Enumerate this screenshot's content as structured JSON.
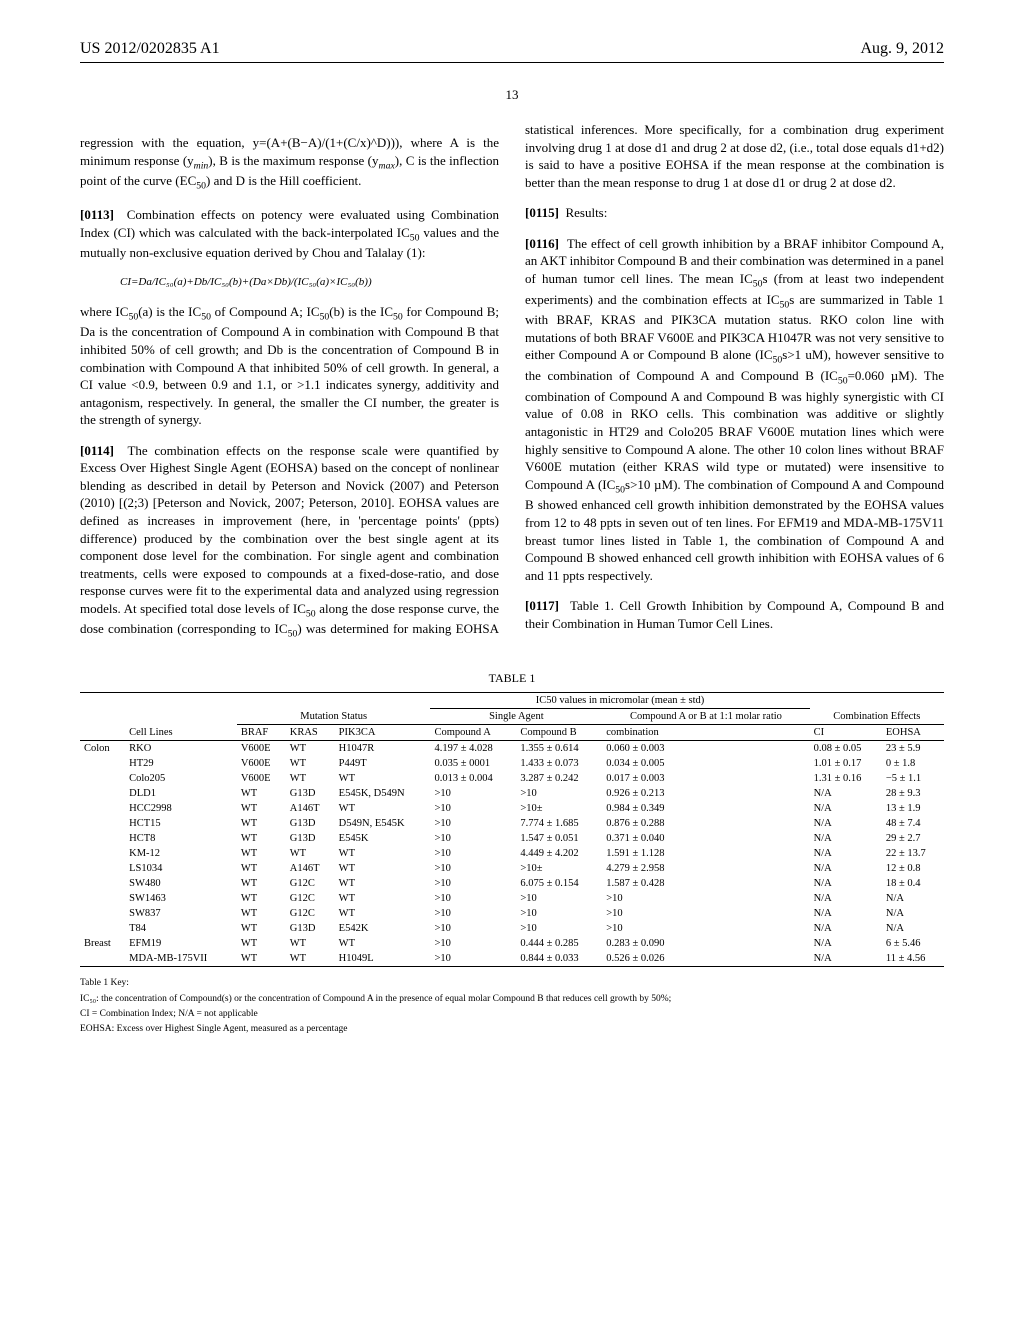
{
  "header": {
    "pub_number": "US 2012/0202835 A1",
    "pub_date": "Aug. 9, 2012"
  },
  "page_number": "13",
  "body": {
    "lead_in": "regression with the equation, y=(A+(B−A)/(1+(C/x)^D))), where A is the minimum response (y",
    "lead_in_min": "min",
    "lead_in_mid1": "), B is the maximum response (y",
    "lead_in_max": "max",
    "lead_in_mid2": "), C is the inflection point of the curve (EC",
    "lead_in_50": "50",
    "lead_in_end": ") and D is the Hill coefficient.",
    "p0113_num": "[0113]",
    "p0113": "Combination effects on potency were evaluated using Combination Index (CI) which was calculated with the back-interpolated IC",
    "p0113_50": "50",
    "p0113_b": " values and the mutually non-exclusive equation derived by Chou and Talalay (1):",
    "equation": "CI=Da/IC₅₀(a)+Db/IC₅₀(b)+(Da×Db)/(IC₅₀(a)×IC₅₀(b))",
    "p_after_eq_a": "where IC",
    "p_after_eq_b": "(a) is the IC",
    "p_after_eq_c": " of Compound A; IC",
    "p_after_eq_d": "(b) is the IC",
    "p_after_eq_e": " for Compound B; Da is the concentration of Compound A in combination with Compound B that inhibited 50% of cell growth; and Db is the concentration of Compound B in combination with Compound A that inhibited 50% of cell growth. In general, a CI value <0.9, between 0.9 and 1.1, or >1.1 indicates synergy, additivity and antagonism, respectively. In general, the smaller the CI number, the greater is the strength of synergy.",
    "p0114_num": "[0114]",
    "p0114": "The combination effects on the response scale were quantified by Excess Over Highest Single Agent (EOHSA) based on the concept of nonlinear blending as described in detail by Peterson and Novick (2007) and Peterson (2010) [(2;3) [Peterson and Novick, 2007; Peterson, 2010]. EOHSA values are defined as increases in improvement (here, in 'percentage points' (ppts) difference) produced by the combination over the best single agent at its component dose level for the combination. For single agent and combination treatments, cells were exposed to compounds at a fixed-dose-ratio, and dose response curves were fit to the experimental data and analyzed using regression models. At specified total dose levels of IC",
    "p0114_b": " along the dose response curve, the dose combination (corresponding to IC",
    "p0114_c": ") was determined for making EOHSA statistical inferences. More specifically, for a combination drug experiment involving drug 1 at dose d1 and drug 2 at dose d2, (i.e., total dose equals d1+d2) is said to have a positive EOHSA if the mean response at the combination is better than the mean response to drug 1 at dose d1 or drug 2 at dose d2.",
    "p0115_num": "[0115]",
    "p0115": "Results:",
    "p0116_num": "[0116]",
    "p0116": "The effect of cell growth inhibition by a BRAF inhibitor Compound A, an AKT inhibitor Compound B and their combination was determined in a panel of human tumor cell lines. The mean IC",
    "p0116_b": "s (from at least two independent experiments) and the combination effects at IC",
    "p0116_c": "s are summarized in Table 1 with BRAF, KRAS and PIK3CA mutation status. RKO colon line with mutations of both BRAF V600E and PIK3CA H1047R was not very sensitive to either Compound A or Compound B alone (IC",
    "p0116_d": "s>1 uM), however sensitive to the combination of Compound A and Compound B (IC",
    "p0116_e": "=0.060 µM). The combination of Compound A and Compound B was highly synergistic with CI value of 0.08 in RKO cells. This combination was additive or slightly antagonistic in HT29 and Colo205 BRAF V600E mutation lines which were highly sensitive to Compound A alone. The other 10 colon lines without BRAF V600E mutation (either KRAS wild type or mutated) were insensitive to Compound A (IC",
    "p0116_f": "s>10 µM). The combination of Compound A and Compound B showed enhanced cell growth inhibition demonstrated by the EOHSA values from 12 to 48 ppts in seven out of ten lines. For EFM19 and MDA-MB-175V11 breast tumor lines listed in Table 1, the combination of Compound A and Compound B showed enhanced cell growth inhibition with EOHSA values of 6 and 11 ppts respectively.",
    "p0117_num": "[0117]",
    "p0117": "Table 1. Cell Growth Inhibition by Compound A, Compound B and their Combination in Human Tumor Cell Lines."
  },
  "table": {
    "title": "TABLE 1",
    "super_head_ic50": "IC50 values in micromolar (mean ± std)",
    "group_heads": {
      "mutation": "Mutation Status",
      "single": "Single Agent",
      "combo": "Compound A or B at 1:1 molar ratio",
      "effects": "Combination Effects"
    },
    "columns": [
      "",
      "Cell Lines",
      "BRAF",
      "KRAS",
      "PIK3CA",
      "Compound A",
      "Compound B",
      "combination",
      "CI",
      "EOHSA"
    ],
    "rows": [
      [
        "Colon",
        "RKO",
        "V600E",
        "WT",
        "H1047R",
        "4.197 ± 4.028",
        "1.355 ± 0.614",
        "0.060 ± 0.003",
        "0.08 ± 0.05",
        "23 ± 5.9"
      ],
      [
        "",
        "HT29",
        "V600E",
        "WT",
        "P449T",
        "0.035 ± 0001",
        "1.433 ± 0.073",
        "0.034 ± 0.005",
        "1.01 ± 0.17",
        "0 ± 1.8"
      ],
      [
        "",
        "Colo205",
        "V600E",
        "WT",
        "WT",
        "0.013 ± 0.004",
        "3.287 ± 0.242",
        "0.017 ± 0.003",
        "1.31 ± 0.16",
        "−5 ± 1.1"
      ],
      [
        "",
        "DLD1",
        "WT",
        "G13D",
        "E545K, D549N",
        ">10",
        ">10",
        "0.926 ± 0.213",
        "N/A",
        "28 ± 9.3"
      ],
      [
        "",
        "HCC2998",
        "WT",
        "A146T",
        "WT",
        ">10",
        ">10±",
        "0.984 ± 0.349",
        "N/A",
        "13 ± 1.9"
      ],
      [
        "",
        "HCT15",
        "WT",
        "G13D",
        "D549N, E545K",
        ">10",
        "7.774 ± 1.685",
        "0.876 ± 0.288",
        "N/A",
        "48 ± 7.4"
      ],
      [
        "",
        "HCT8",
        "WT",
        "G13D",
        "E545K",
        ">10",
        "1.547 ± 0.051",
        "0.371 ± 0.040",
        "N/A",
        "29 ± 2.7"
      ],
      [
        "",
        "KM-12",
        "WT",
        "WT",
        "WT",
        ">10",
        "4.449 ± 4.202",
        "1.591 ± 1.128",
        "N/A",
        "22 ± 13.7"
      ],
      [
        "",
        "LS1034",
        "WT",
        "A146T",
        "WT",
        ">10",
        ">10±",
        "4.279 ± 2.958",
        "N/A",
        "12 ± 0.8"
      ],
      [
        "",
        "SW480",
        "WT",
        "G12C",
        "WT",
        ">10",
        "6.075 ± 0.154",
        "1.587 ± 0.428",
        "N/A",
        "18 ± 0.4"
      ],
      [
        "",
        "SW1463",
        "WT",
        "G12C",
        "WT",
        ">10",
        ">10",
        ">10",
        "N/A",
        "N/A"
      ],
      [
        "",
        "SW837",
        "WT",
        "G12C",
        "WT",
        ">10",
        ">10",
        ">10",
        "N/A",
        "N/A"
      ],
      [
        "",
        "T84",
        "WT",
        "G13D",
        "E542K",
        ">10",
        ">10",
        ">10",
        "N/A",
        "N/A"
      ],
      [
        "Breast",
        "EFM19",
        "WT",
        "WT",
        "WT",
        ">10",
        "0.444 ± 0.285",
        "0.283 ± 0.090",
        "N/A",
        "6 ± 5.46"
      ],
      [
        "",
        "MDA-MB-175VII",
        "WT",
        "WT",
        "H1049L",
        ">10",
        "0.844 ± 0.033",
        "0.526 ± 0.026",
        "N/A",
        "11 ± 4.56"
      ]
    ]
  },
  "footnotes": {
    "key": "Table 1 Key:",
    "ic50": "IC₅₀: the concentration of Compound(s) or the concentration of Compound A in the presence of equal molar Compound B that reduces cell growth by 50%;",
    "ci": "CI = Combination Index; N/A = not applicable",
    "eohsa": "EOHSA: Excess over Highest Single Agent, measured as a percentage"
  }
}
